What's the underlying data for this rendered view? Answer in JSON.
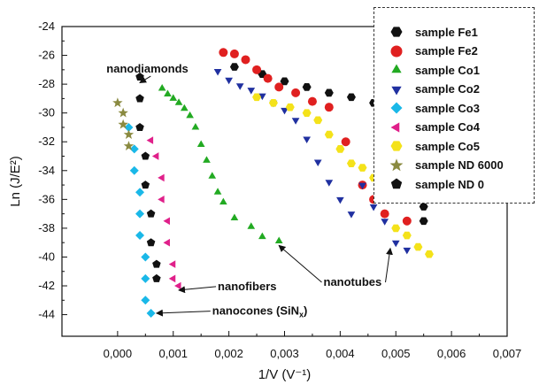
{
  "chart_data": {
    "type": "scatter",
    "title": "",
    "xlabel": "1/V (V⁻¹)",
    "ylabel": "Ln (J/E²)",
    "xlim": [
      -0.001,
      0.007
    ],
    "ylim": [
      -45.5,
      -24
    ],
    "x_ticks": [
      0.0,
      0.001,
      0.002,
      0.003,
      0.004,
      0.005,
      0.006,
      0.007
    ],
    "x_tick_labels": [
      "0,000",
      "0,001",
      "0,002",
      "0,003",
      "0,004",
      "0,005",
      "0,006",
      "0,007"
    ],
    "y_ticks": [
      -24,
      -26,
      -28,
      -30,
      -32,
      -34,
      -36,
      -38,
      -40,
      -42,
      -44
    ],
    "y_tick_labels": [
      "-24",
      "-26",
      "-28",
      "-30",
      "-32",
      "-34",
      "-36",
      "-38",
      "-40",
      "-42",
      "-44"
    ],
    "grid": false,
    "legend_placement": "top-right",
    "series": [
      {
        "name": "sample Fe1",
        "color": "#111111",
        "marker": "hexagon",
        "points": [
          [
            0.0021,
            -26.8
          ],
          [
            0.0026,
            -27.3
          ],
          [
            0.003,
            -27.8
          ],
          [
            0.0034,
            -28.2
          ],
          [
            0.0038,
            -28.6
          ],
          [
            0.0042,
            -28.9
          ],
          [
            0.0046,
            -29.3
          ],
          [
            0.0049,
            -30.0
          ],
          [
            0.0051,
            -32.0
          ],
          [
            0.0052,
            -33.5
          ],
          [
            0.0054,
            -34.0
          ],
          [
            0.0055,
            -36.5
          ],
          [
            0.0055,
            -37.5
          ]
        ]
      },
      {
        "name": "sample Fe2",
        "color": "#e02020",
        "marker": "circle",
        "points": [
          [
            0.0019,
            -25.8
          ],
          [
            0.0021,
            -25.9
          ],
          [
            0.0023,
            -26.3
          ],
          [
            0.0025,
            -27.0
          ],
          [
            0.0027,
            -27.6
          ],
          [
            0.0029,
            -28.2
          ],
          [
            0.0032,
            -28.6
          ],
          [
            0.0035,
            -29.2
          ],
          [
            0.0038,
            -29.6
          ],
          [
            0.0041,
            -32.0
          ],
          [
            0.0044,
            -35.0
          ],
          [
            0.0046,
            -36.0
          ],
          [
            0.0048,
            -37.0
          ],
          [
            0.005,
            -35.5
          ],
          [
            0.0052,
            -37.5
          ]
        ]
      },
      {
        "name": "sample Co1",
        "color": "#22aa22",
        "marker": "triangle-up",
        "points": [
          [
            0.0008,
            -28.3
          ],
          [
            0.0009,
            -28.7
          ],
          [
            0.001,
            -29.0
          ],
          [
            0.0011,
            -29.3
          ],
          [
            0.0012,
            -29.7
          ],
          [
            0.0013,
            -30.2
          ],
          [
            0.0014,
            -31.0
          ],
          [
            0.0015,
            -32.2
          ],
          [
            0.0016,
            -33.3
          ],
          [
            0.0017,
            -34.4
          ],
          [
            0.0018,
            -35.5
          ],
          [
            0.0019,
            -36.2
          ],
          [
            0.0021,
            -37.3
          ],
          [
            0.0024,
            -37.9
          ],
          [
            0.0026,
            -38.6
          ],
          [
            0.0029,
            -38.9
          ]
        ]
      },
      {
        "name": "sample Co2",
        "color": "#2030a0",
        "marker": "triangle-down",
        "points": [
          [
            0.0018,
            -27.1
          ],
          [
            0.002,
            -27.7
          ],
          [
            0.0022,
            -28.1
          ],
          [
            0.0024,
            -28.4
          ],
          [
            0.0026,
            -28.8
          ],
          [
            0.0028,
            -29.3
          ],
          [
            0.003,
            -29.8
          ],
          [
            0.0032,
            -30.5
          ],
          [
            0.0034,
            -31.8
          ],
          [
            0.0036,
            -33.4
          ],
          [
            0.0038,
            -34.8
          ],
          [
            0.004,
            -36.0
          ],
          [
            0.0042,
            -37.0
          ],
          [
            0.0044,
            -35.0
          ],
          [
            0.0046,
            -36.5
          ],
          [
            0.0048,
            -37.5
          ],
          [
            0.005,
            -39.0
          ],
          [
            0.0052,
            -39.5
          ]
        ]
      },
      {
        "name": "sample Co3",
        "color": "#1ab8e8",
        "marker": "diamond",
        "points": [
          [
            0.0002,
            -31.0
          ],
          [
            0.0003,
            -32.5
          ],
          [
            0.0003,
            -34.0
          ],
          [
            0.0004,
            -35.5
          ],
          [
            0.0004,
            -37.0
          ],
          [
            0.0004,
            -38.5
          ],
          [
            0.0005,
            -40.0
          ],
          [
            0.0005,
            -41.5
          ],
          [
            0.0005,
            -43.0
          ],
          [
            0.0006,
            -43.9
          ]
        ]
      },
      {
        "name": "sample Co4",
        "color": "#e0208a",
        "marker": "triangle-left",
        "points": [
          [
            0.0006,
            -31.9
          ],
          [
            0.0007,
            -33.0
          ],
          [
            0.0008,
            -34.5
          ],
          [
            0.0008,
            -36.0
          ],
          [
            0.0009,
            -37.5
          ],
          [
            0.0009,
            -39.0
          ],
          [
            0.001,
            -40.5
          ],
          [
            0.001,
            -41.5
          ],
          [
            0.0011,
            -42.0
          ]
        ]
      },
      {
        "name": "sample Co5",
        "color": "#f4e21a",
        "marker": "hexagon",
        "points": [
          [
            0.0025,
            -28.9
          ],
          [
            0.0028,
            -29.3
          ],
          [
            0.0031,
            -29.6
          ],
          [
            0.0034,
            -30.0
          ],
          [
            0.0036,
            -30.5
          ],
          [
            0.0038,
            -31.5
          ],
          [
            0.004,
            -32.5
          ],
          [
            0.0042,
            -33.5
          ],
          [
            0.0044,
            -33.8
          ],
          [
            0.0046,
            -34.5
          ],
          [
            0.0048,
            -35.0
          ],
          [
            0.005,
            -38.0
          ],
          [
            0.0052,
            -38.5
          ],
          [
            0.0054,
            -39.3
          ],
          [
            0.0056,
            -39.8
          ]
        ]
      },
      {
        "name": "sample ND 6000",
        "color": "#8a8a40",
        "marker": "star",
        "points": [
          [
            0.0,
            -29.3
          ],
          [
            0.0001,
            -30.0
          ],
          [
            0.0001,
            -30.8
          ],
          [
            0.0002,
            -31.5
          ],
          [
            0.0002,
            -32.3
          ]
        ]
      },
      {
        "name": "sample ND 0",
        "color": "#111111",
        "marker": "pentagon",
        "points": [
          [
            0.0004,
            -27.5
          ],
          [
            0.0004,
            -29.0
          ],
          [
            0.0004,
            -31.0
          ],
          [
            0.0005,
            -33.0
          ],
          [
            0.0005,
            -35.0
          ],
          [
            0.0006,
            -37.0
          ],
          [
            0.0006,
            -39.0
          ],
          [
            0.0007,
            -40.5
          ],
          [
            0.0007,
            -41.5
          ]
        ]
      }
    ],
    "annotations": [
      {
        "text": "nanodiamonds",
        "arrow_to": [
          0.0004,
          -27.9
        ],
        "text_at": [
          -0.0002,
          -27.2
        ]
      },
      {
        "text": "nanofibers",
        "arrow_to": [
          0.0011,
          -42.3
        ],
        "text_at": [
          0.0018,
          -42.3
        ]
      },
      {
        "text": "nanocones (SiN",
        "subscript": "x",
        "suffix": ")",
        "arrow_to": [
          0.0007,
          -43.9
        ],
        "text_at": [
          0.0017,
          -44.0
        ]
      },
      {
        "text": "nanotubes",
        "arrow_to_list": [
          [
            0.0029,
            -39.2
          ],
          [
            0.0049,
            -39.4
          ]
        ],
        "text_at": [
          0.0037,
          -42.0
        ]
      }
    ]
  }
}
